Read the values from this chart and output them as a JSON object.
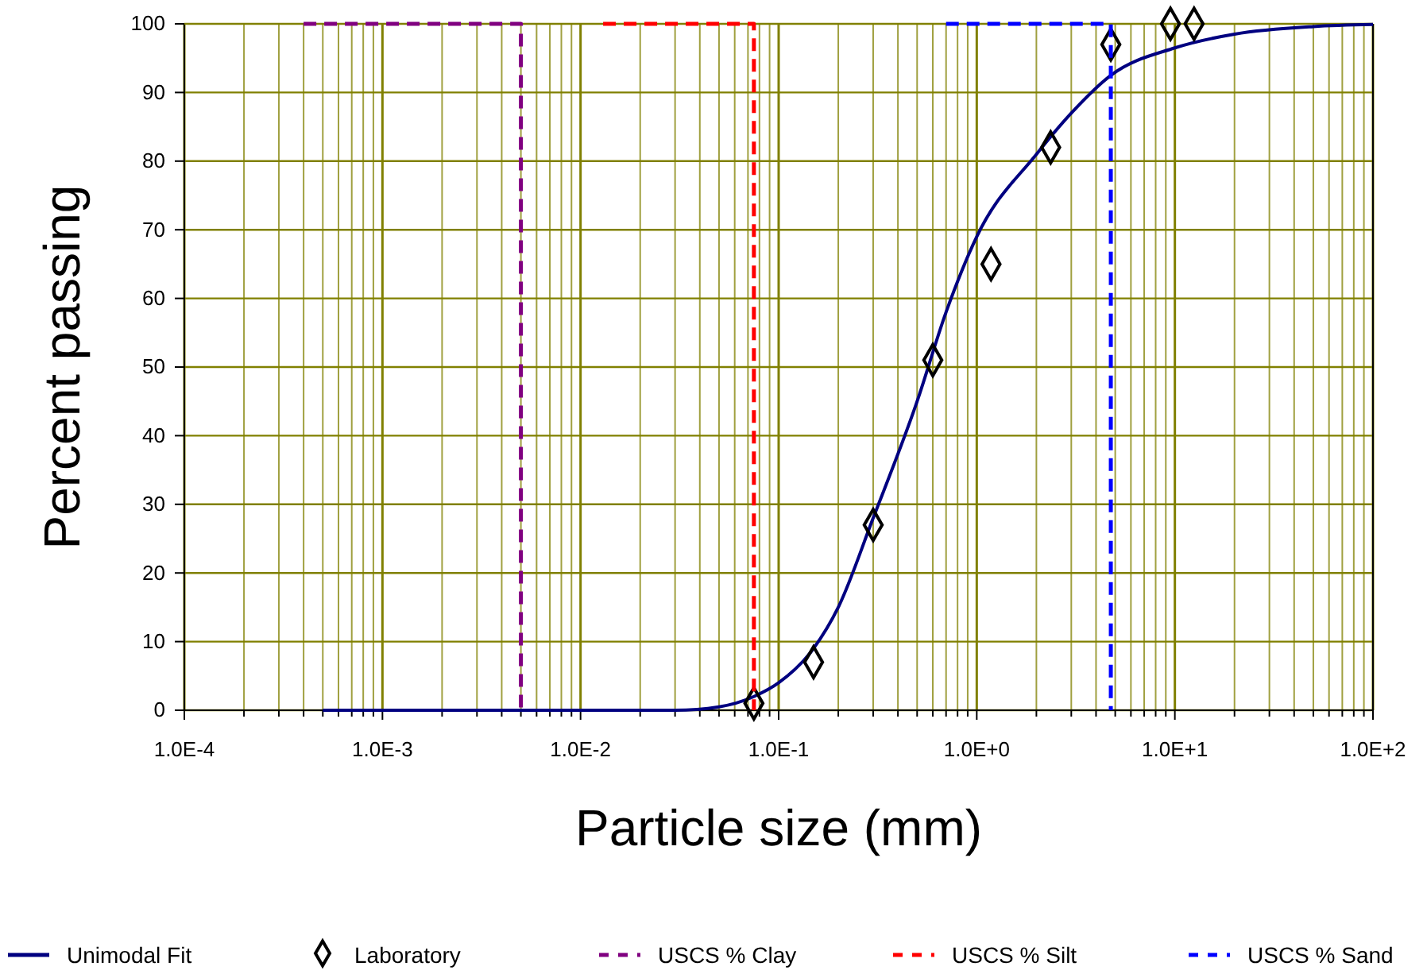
{
  "chart_data": {
    "type": "line",
    "xlabel": "Particle size (mm)",
    "ylabel": "Percent passing",
    "log": "x",
    "xlim": [
      0.0001,
      100
    ],
    "xticks": [
      {
        "value": 0.0001,
        "label": "1.0E-4"
      },
      {
        "value": 0.0002,
        "label": null
      },
      {
        "value": 0.0003,
        "label": null
      },
      {
        "value": 0.0004,
        "label": null
      },
      {
        "value": 0.0005,
        "label": null
      },
      {
        "value": 0.0006,
        "label": null
      },
      {
        "value": 0.0007,
        "label": null
      },
      {
        "value": 0.0008,
        "label": null
      },
      {
        "value": 0.0009,
        "label": null
      },
      {
        "value": 0.001,
        "label": "1.0E-3"
      },
      {
        "value": 0.002,
        "label": null
      },
      {
        "value": 0.003,
        "label": null
      },
      {
        "value": 0.004,
        "label": null
      },
      {
        "value": 0.005,
        "label": null
      },
      {
        "value": 0.006,
        "label": null
      },
      {
        "value": 0.007,
        "label": null
      },
      {
        "value": 0.008,
        "label": null
      },
      {
        "value": 0.009,
        "label": null
      },
      {
        "value": 0.01,
        "label": "1.0E-2"
      },
      {
        "value": 0.02,
        "label": null
      },
      {
        "value": 0.03,
        "label": null
      },
      {
        "value": 0.04,
        "label": null
      },
      {
        "value": 0.05,
        "label": null
      },
      {
        "value": 0.06,
        "label": null
      },
      {
        "value": 0.07,
        "label": null
      },
      {
        "value": 0.08,
        "label": null
      },
      {
        "value": 0.09,
        "label": null
      },
      {
        "value": 0.1,
        "label": "1.0E-1"
      },
      {
        "value": 0.2,
        "label": null
      },
      {
        "value": 0.3,
        "label": null
      },
      {
        "value": 0.4,
        "label": null
      },
      {
        "value": 0.5,
        "label": null
      },
      {
        "value": 0.6,
        "label": null
      },
      {
        "value": 0.7,
        "label": null
      },
      {
        "value": 0.8,
        "label": null
      },
      {
        "value": 0.9,
        "label": null
      },
      {
        "value": 1,
        "label": "1.0E+0"
      },
      {
        "value": 2,
        "label": null
      },
      {
        "value": 3,
        "label": null
      },
      {
        "value": 4,
        "label": null
      },
      {
        "value": 5,
        "label": null
      },
      {
        "value": 6,
        "label": null
      },
      {
        "value": 7,
        "label": null
      },
      {
        "value": 8,
        "label": null
      },
      {
        "value": 9,
        "label": null
      },
      {
        "value": 10,
        "label": "1.0E+1"
      },
      {
        "value": 20,
        "label": null
      },
      {
        "value": 30,
        "label": null
      },
      {
        "value": 40,
        "label": null
      },
      {
        "value": 50,
        "label": null
      },
      {
        "value": 60,
        "label": null
      },
      {
        "value": 70,
        "label": null
      },
      {
        "value": 80,
        "label": null
      },
      {
        "value": 90,
        "label": null
      },
      {
        "value": 100,
        "label": "1.0E+2"
      }
    ],
    "ylim": [
      0,
      100
    ],
    "yticks": [
      0,
      10,
      20,
      30,
      40,
      50,
      60,
      70,
      80,
      90,
      100
    ],
    "grid": true,
    "legend": "bottom",
    "series": [
      {
        "name": "Unimodal Fit",
        "color": "#000080",
        "line_style": "solid",
        "x": [
          0.0005,
          0.001,
          0.005,
          0.01,
          0.02,
          0.03,
          0.05,
          0.075,
          0.1,
          0.15,
          0.2,
          0.3,
          0.5,
          0.7,
          1,
          2,
          3,
          4.75,
          10,
          20,
          50,
          100
        ],
        "values": [
          0,
          0,
          0,
          0,
          0,
          0,
          0.5,
          2,
          4,
          9,
          15,
          28,
          45,
          58,
          69,
          81,
          87,
          92.5,
          96.5,
          98.5,
          99.6,
          99.9
        ]
      },
      {
        "name": "Laboratory",
        "type": "scatter",
        "color": "#000000",
        "marker": "diamond",
        "x": [
          0.075,
          0.15,
          0.3,
          0.6,
          1.18,
          2.36,
          4.75,
          9.5,
          12.5
        ],
        "values": [
          1,
          7,
          27,
          51,
          65,
          82,
          97,
          100,
          100
        ]
      },
      {
        "name": "USCS % Clay",
        "color": "#800080",
        "line_style": "dashed",
        "x": [
          0.0004,
          0.005,
          0.005
        ],
        "values": [
          100,
          100,
          0
        ]
      },
      {
        "name": "USCS % Silt",
        "color": "#ff0000",
        "line_style": "dashed",
        "x": [
          0.013,
          0.075,
          0.075
        ],
        "values": [
          100,
          100,
          0
        ]
      },
      {
        "name": "USCS % Sand",
        "color": "#0000ff",
        "line_style": "dashed",
        "x": [
          0.7,
          4.75,
          4.75
        ],
        "values": [
          100,
          100,
          0
        ]
      }
    ]
  }
}
